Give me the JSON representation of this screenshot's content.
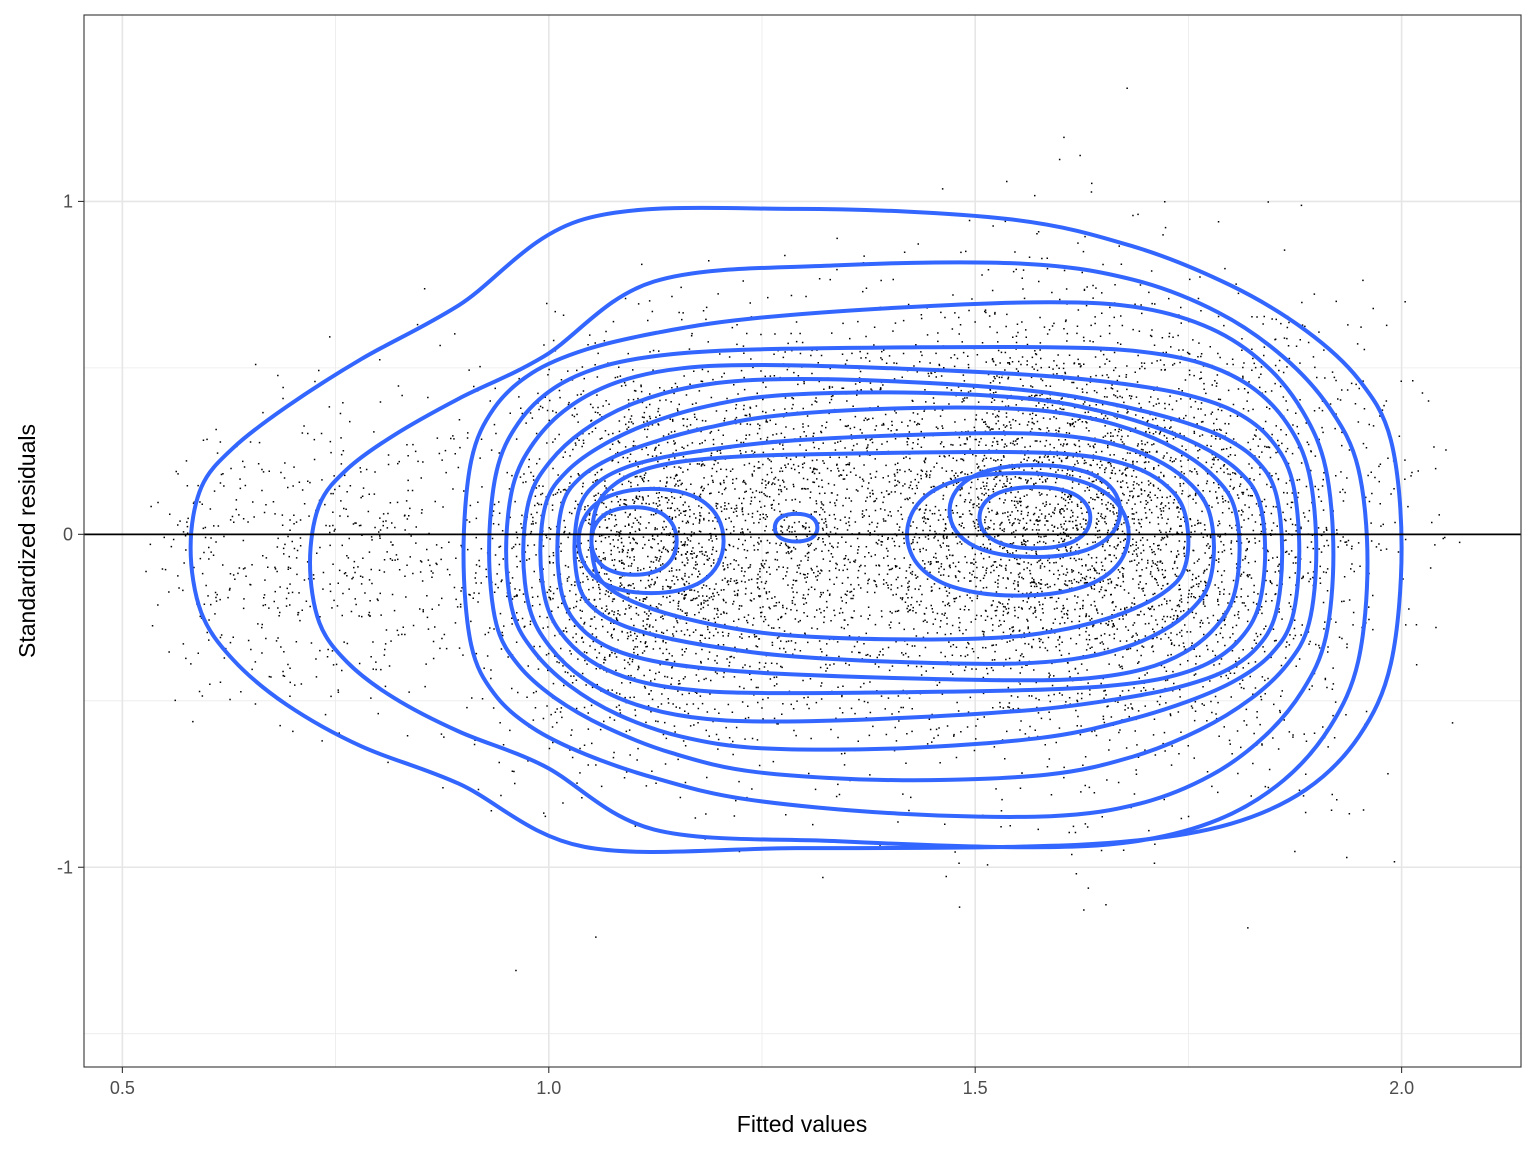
{
  "chart_data": {
    "type": "scatter",
    "title": "",
    "xlabel": "Fitted values",
    "ylabel": "Standardized residuals",
    "xlim": [
      0.455,
      2.14
    ],
    "ylim": [
      -1.6,
      1.56
    ],
    "x_ticks": [
      0.5,
      1.0,
      1.5,
      2.0
    ],
    "x_tick_labels": [
      "0.5",
      "1.0",
      "1.5",
      "2.0"
    ],
    "y_ticks": [
      -1,
      0,
      1
    ],
    "y_tick_labels": [
      "-1",
      "0",
      "1"
    ],
    "x_minor_gridlines": [
      0.75,
      1.25,
      1.75
    ],
    "y_minor_gridlines": [
      -1.5,
      -0.5,
      0.5
    ],
    "grid": true,
    "theme": "bw",
    "reference_line": {
      "y": 0,
      "color": "#000000"
    },
    "points": {
      "color": "#000000",
      "approx_count": 8000,
      "clusters": [
        {
          "x_center": 1.1,
          "y_center": -0.05,
          "x_spread": 0.09,
          "y_spread": 0.3,
          "weight": 0.24
        },
        {
          "x_center": 1.3,
          "y_center": 0.0,
          "x_spread": 0.1,
          "y_spread": 0.3,
          "weight": 0.16
        },
        {
          "x_center": 1.55,
          "y_center": 0.05,
          "x_spread": 0.1,
          "y_spread": 0.33,
          "weight": 0.28
        },
        {
          "x_center": 1.72,
          "y_center": 0.02,
          "x_spread": 0.1,
          "y_spread": 0.35,
          "weight": 0.2
        },
        {
          "x_center": 0.78,
          "y_center": -0.05,
          "x_spread": 0.08,
          "y_spread": 0.25,
          "weight": 0.05
        },
        {
          "x_center": 0.62,
          "y_center": -0.1,
          "x_spread": 0.05,
          "y_spread": 0.2,
          "weight": 0.02
        },
        {
          "x_center": 1.88,
          "y_center": 0.0,
          "x_spread": 0.07,
          "y_spread": 0.33,
          "weight": 0.05
        }
      ],
      "x_range": [
        0.52,
        2.07
      ],
      "y_range": [
        -1.52,
        1.45
      ]
    },
    "density_contours": {
      "color": "#3366FF",
      "levels": [
        {
          "name": "outer",
          "x_range": [
            0.58,
            2.0
          ],
          "y_range": [
            -1.0,
            0.92
          ],
          "left_tail": true
        },
        {
          "name": "level-2",
          "x_range": [
            0.72,
            1.96
          ],
          "y_range": [
            -0.95,
            0.78
          ],
          "left_tail": true
        },
        {
          "name": "level-3",
          "x_range": [
            0.9,
            1.92
          ],
          "y_range": [
            -0.82,
            0.7
          ]
        },
        {
          "name": "level-4",
          "x_range": [
            0.93,
            1.9
          ],
          "y_range": [
            -0.7,
            0.6
          ]
        },
        {
          "name": "level-5",
          "x_range": [
            0.95,
            1.88
          ],
          "y_range": [
            -0.62,
            0.52
          ]
        },
        {
          "name": "level-6",
          "x_range": [
            0.97,
            1.86
          ],
          "y_range": [
            -0.56,
            0.45
          ]
        },
        {
          "name": "level-7",
          "x_range": [
            0.99,
            1.84
          ],
          "y_range": [
            -0.5,
            0.4
          ]
        },
        {
          "name": "level-8",
          "x_range": [
            1.01,
            1.81
          ],
          "y_range": [
            -0.45,
            0.36
          ]
        },
        {
          "name": "level-9",
          "x_range": [
            1.03,
            1.78
          ],
          "y_range": [
            -0.38,
            0.3
          ]
        },
        {
          "name": "level-10",
          "x_range": [
            1.05,
            1.75
          ],
          "y_range": [
            -0.3,
            0.26
          ]
        },
        {
          "name": "peak-left-outer",
          "x_center": 1.12,
          "y_center": -0.02,
          "x_radius": 0.085,
          "y_radius": 0.17
        },
        {
          "name": "peak-left-inner",
          "x_center": 1.1,
          "y_center": -0.02,
          "x_radius": 0.05,
          "y_radius": 0.11
        },
        {
          "name": "peak-mid",
          "x_center": 1.29,
          "y_center": 0.02,
          "x_radius": 0.025,
          "y_radius": 0.045
        },
        {
          "name": "peak-right-outer",
          "x_center": 1.55,
          "y_center": 0.0,
          "x_radius": 0.13,
          "y_radius": 0.2
        },
        {
          "name": "peak-right-mid",
          "x_center": 1.57,
          "y_center": 0.07,
          "x_radius": 0.1,
          "y_radius": 0.15
        },
        {
          "name": "peak-right-inner",
          "x_center": 1.57,
          "y_center": 0.05,
          "x_radius": 0.065,
          "y_radius": 0.1
        }
      ]
    }
  }
}
